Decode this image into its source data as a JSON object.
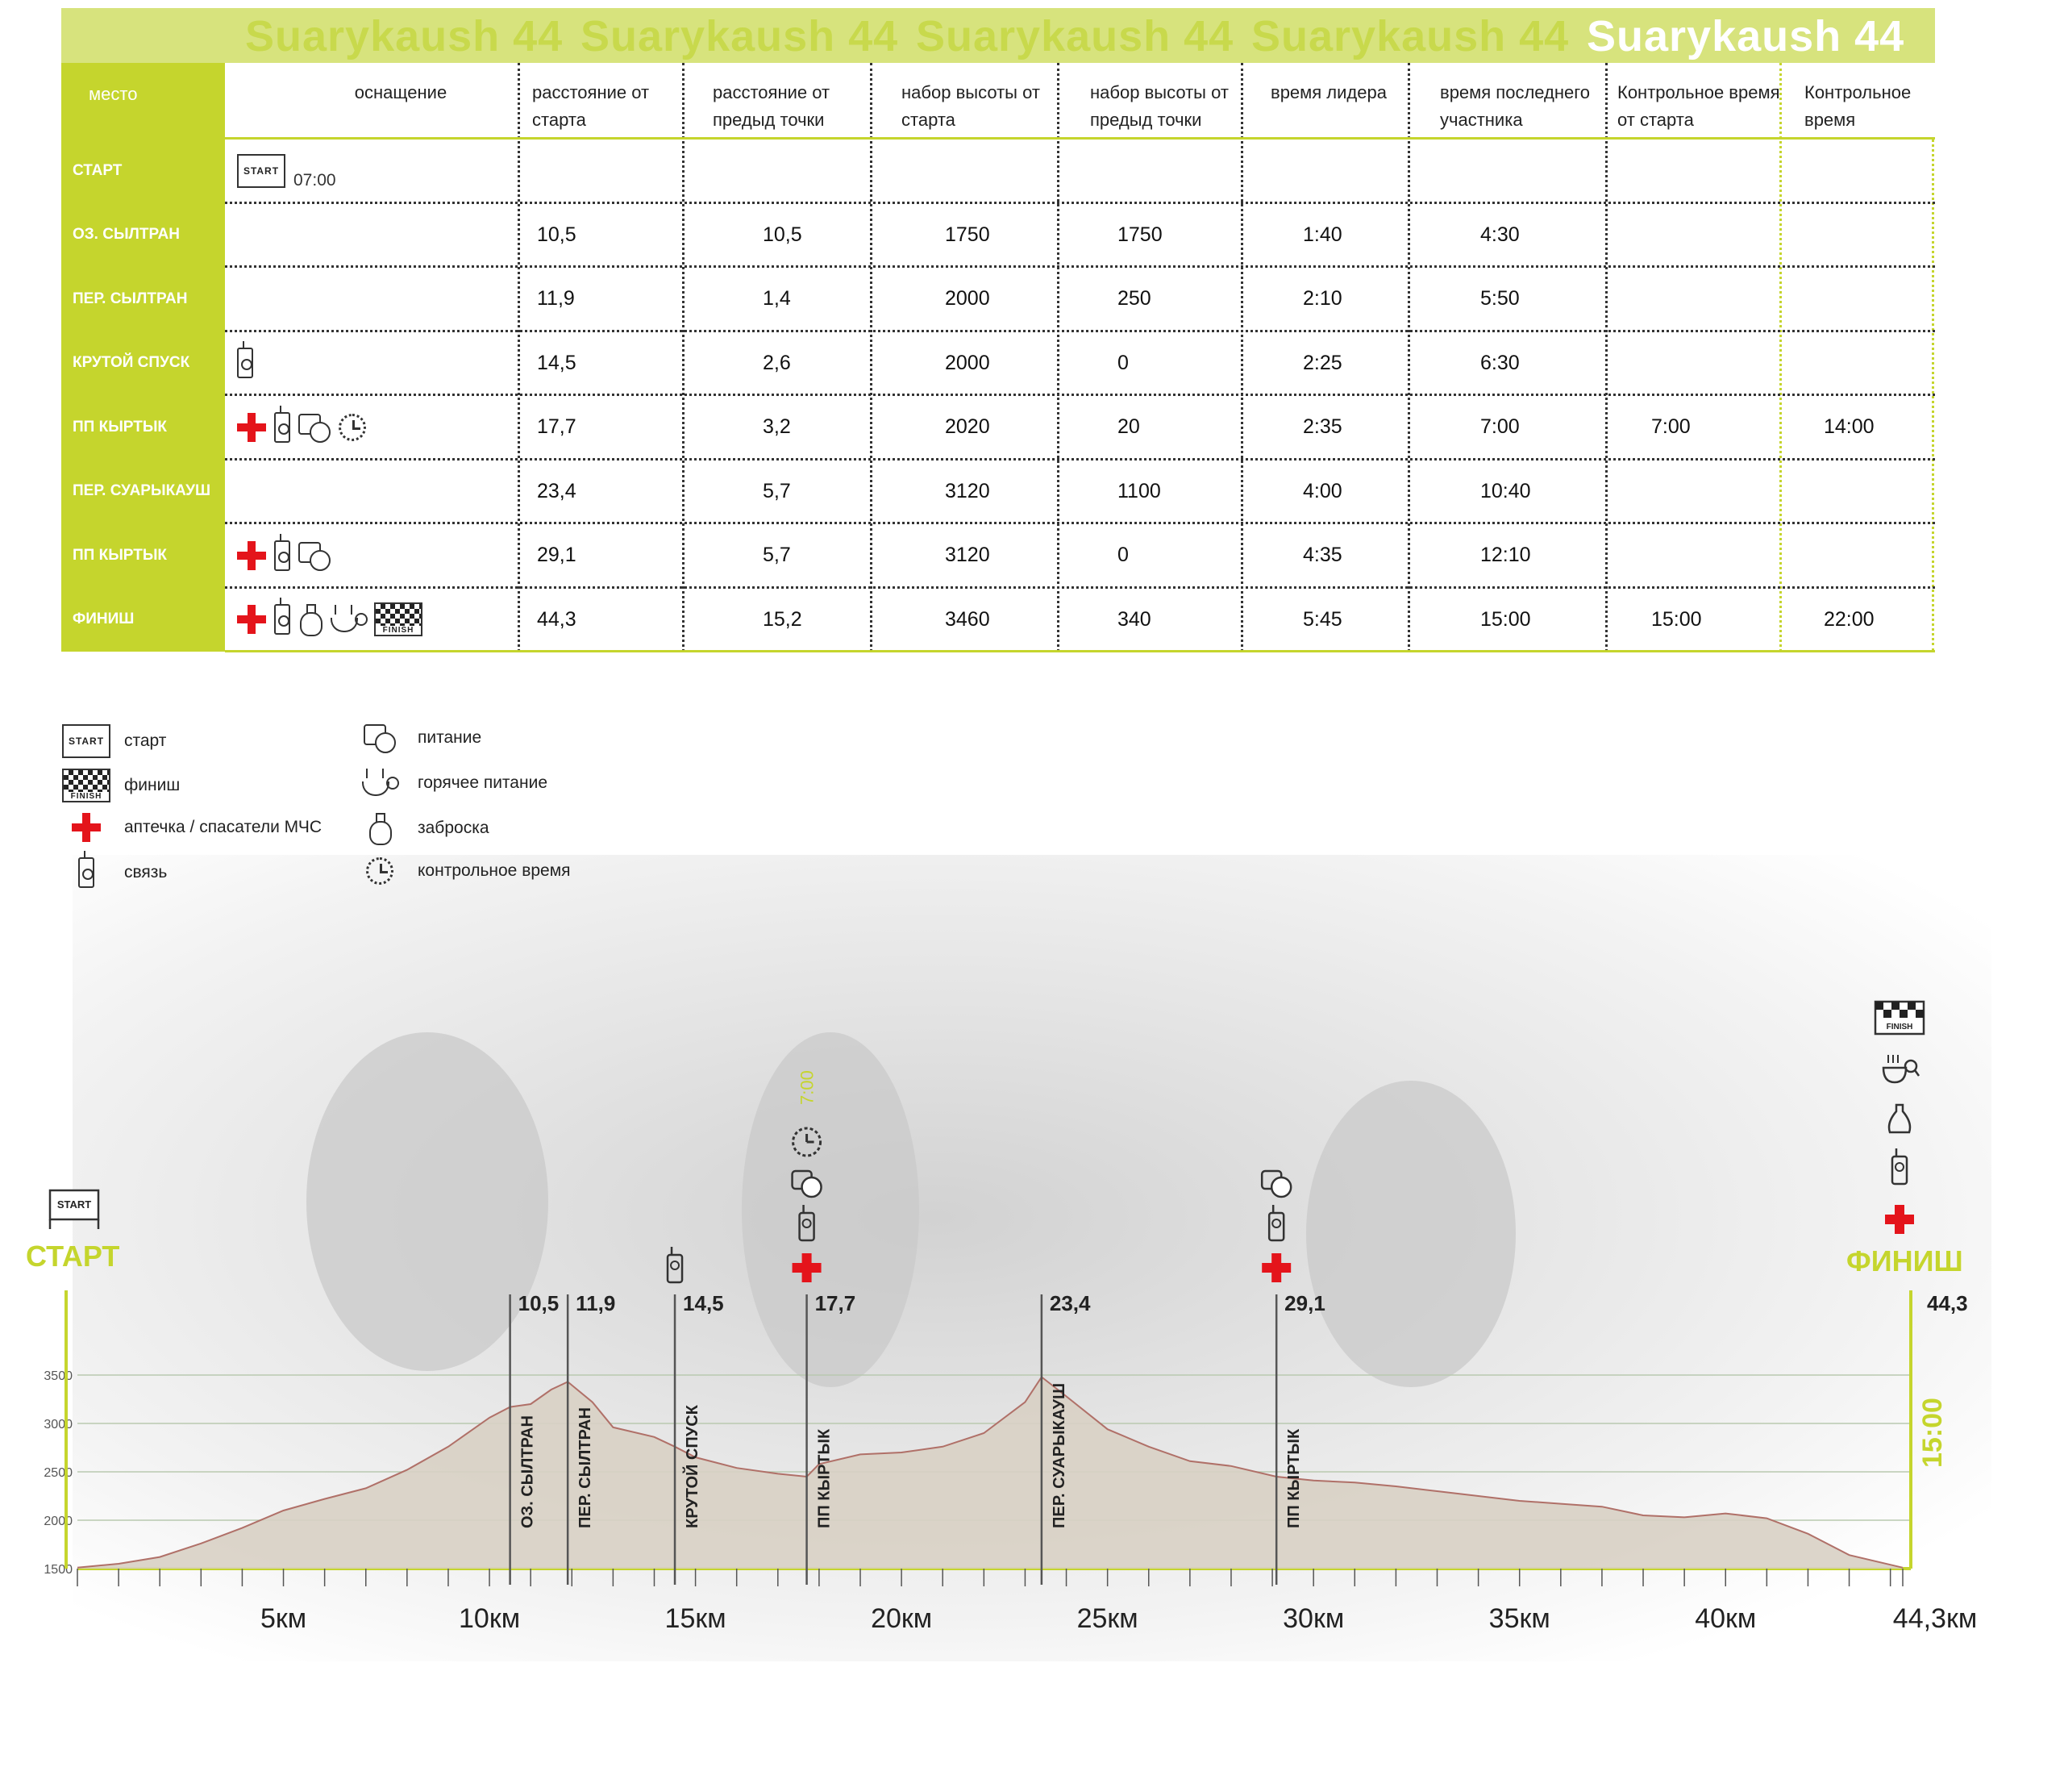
{
  "banner": {
    "titles": [
      "Suarykaush 44",
      "Suarykaush 44",
      "Suarykaush 44",
      "Suarykaush 44",
      "Suarykaush 44"
    ]
  },
  "table": {
    "headers": {
      "place": "место",
      "equipment": "оснащение",
      "dist_start": "расстояние от старта",
      "dist_prev": "расстояние от предыд точки",
      "gain_start": "набор высоты от старта",
      "gain_prev": "набор высоты от предыд точки",
      "leader_time": "время лидера",
      "last_time": "время последнего участника",
      "cutoff_start": "Контрольное время от старта",
      "cutoff": "Контрольное время"
    },
    "start_time": "07:00",
    "rows": [
      {
        "place": "СТАРТ",
        "icons": [
          "start-flag"
        ],
        "dist_start": "",
        "dist_prev": "",
        "gain_start": "",
        "gain_prev": "",
        "leader_time": "",
        "last_time": "",
        "cutoff_start": "",
        "cutoff": ""
      },
      {
        "place": "ОЗ. СЫЛТРАН",
        "icons": [],
        "dist_start": "10,5",
        "dist_prev": "10,5",
        "gain_start": "1750",
        "gain_prev": "1750",
        "leader_time": "1:40",
        "last_time": "4:30",
        "cutoff_start": "",
        "cutoff": ""
      },
      {
        "place": "ПЕР. СЫЛТРАН",
        "icons": [],
        "dist_start": "11,9",
        "dist_prev": "1,4",
        "gain_start": "2000",
        "gain_prev": "250",
        "leader_time": "2:10",
        "last_time": "5:50",
        "cutoff_start": "",
        "cutoff": ""
      },
      {
        "place": "КРУТОЙ СПУСК",
        "icons": [
          "radio"
        ],
        "dist_start": "14,5",
        "dist_prev": "2,6",
        "gain_start": "2000",
        "gain_prev": "0",
        "leader_time": "2:25",
        "last_time": "6:30",
        "cutoff_start": "",
        "cutoff": ""
      },
      {
        "place": "ПП КЫРТЫК",
        "icons": [
          "cross",
          "radio",
          "food",
          "clock"
        ],
        "dist_start": "17,7",
        "dist_prev": "3,2",
        "gain_start": "2020",
        "gain_prev": "20",
        "leader_time": "2:35",
        "last_time": "7:00",
        "cutoff_start": "7:00",
        "cutoff": "14:00"
      },
      {
        "place": "ПЕР. СУАРЫКАУШ",
        "icons": [],
        "dist_start": "23,4",
        "dist_prev": "5,7",
        "gain_start": "3120",
        "gain_prev": "1100",
        "leader_time": "4:00",
        "last_time": "10:40",
        "cutoff_start": "",
        "cutoff": ""
      },
      {
        "place": "ПП КЫРТЫК",
        "icons": [
          "cross",
          "radio",
          "food"
        ],
        "dist_start": "29,1",
        "dist_prev": "5,7",
        "gain_start": "3120",
        "gain_prev": "0",
        "leader_time": "4:35",
        "last_time": "12:10",
        "cutoff_start": "",
        "cutoff": ""
      },
      {
        "place": "ФИНИШ",
        "icons": [
          "cross",
          "radio",
          "bag",
          "hot",
          "finish-flag"
        ],
        "dist_start": "44,3",
        "dist_prev": "15,2",
        "gain_start": "3460",
        "gain_prev": "340",
        "leader_time": "5:45",
        "last_time": "15:00",
        "cutoff_start": "15:00",
        "cutoff": "22:00"
      }
    ]
  },
  "flags": {
    "start": "START",
    "finish": "FINISH"
  },
  "legend": {
    "left": [
      {
        "icon": "start-flag",
        "label": "старт"
      },
      {
        "icon": "finish-flag",
        "label": "финиш"
      },
      {
        "icon": "cross",
        "label": "аптечка / спасатели МЧС"
      },
      {
        "icon": "radio",
        "label": "связь"
      }
    ],
    "right": [
      {
        "icon": "food",
        "label": "питание"
      },
      {
        "icon": "hot",
        "label": "горячее питание"
      },
      {
        "icon": "bag",
        "label": "заброска"
      },
      {
        "icon": "clock",
        "label": "контрольное время"
      }
    ]
  },
  "colors": {
    "accent": "#c5d52d",
    "banner": "#d7e37d",
    "red": "#e4141b",
    "area": "#d8d0c4",
    "line": "#b07068"
  },
  "chart_data": {
    "type": "area",
    "start_label": "СТАРТ",
    "finish_label": "ФИНИШ",
    "finish_time": "15:00",
    "checkpoint_time": "7:00",
    "end_distance": "44,3",
    "xlim": [
      0,
      44.3
    ],
    "ylim": [
      1500,
      3500
    ],
    "yticks": [
      1500,
      2000,
      2500,
      3000,
      3500
    ],
    "xtick_labels": [
      {
        "x": 5,
        "label": "5км"
      },
      {
        "x": 10,
        "label": "10км"
      },
      {
        "x": 15,
        "label": "15км"
      },
      {
        "x": 20,
        "label": "20км"
      },
      {
        "x": 25,
        "label": "25км"
      },
      {
        "x": 30,
        "label": "30км"
      },
      {
        "x": 35,
        "label": "35км"
      },
      {
        "x": 40,
        "label": "40км"
      },
      {
        "x": 44.3,
        "label": "44,3км"
      }
    ],
    "x": [
      0,
      1,
      2,
      3,
      4,
      5,
      6,
      7,
      8,
      9,
      10,
      10.5,
      11,
      11.5,
      11.9,
      12.5,
      13,
      14,
      14.5,
      15,
      16,
      17,
      17.7,
      18,
      19,
      20,
      21,
      22,
      23,
      23.4,
      24,
      25,
      26,
      27,
      28,
      29.1,
      30,
      31,
      32,
      33,
      34,
      35,
      36,
      37,
      38,
      39,
      40,
      41,
      42,
      43,
      44.3
    ],
    "y": [
      1510,
      1550,
      1620,
      1760,
      1920,
      2100,
      2220,
      2330,
      2520,
      2760,
      3060,
      3170,
      3200,
      3350,
      3430,
      3220,
      2960,
      2860,
      2760,
      2650,
      2540,
      2480,
      2450,
      2580,
      2680,
      2700,
      2760,
      2900,
      3220,
      3480,
      3280,
      2940,
      2760,
      2610,
      2560,
      2450,
      2410,
      2390,
      2350,
      2300,
      2250,
      2200,
      2170,
      2140,
      2050,
      2030,
      2070,
      2020,
      1860,
      1640,
      1510
    ],
    "checkpoints": [
      {
        "x": 10.5,
        "label": "10,5",
        "name": "ОЗ. СЫЛТРАН",
        "icons": []
      },
      {
        "x": 11.9,
        "label": "11,9",
        "name": "ПЕР. СЫЛТРАН",
        "icons": []
      },
      {
        "x": 14.5,
        "label": "14,5",
        "name": "КРУТОЙ СПУСК",
        "icons": [
          "radio"
        ]
      },
      {
        "x": 17.7,
        "label": "17,7",
        "name": "ПП КЫРТЫК",
        "icons": [
          "cross",
          "radio",
          "food",
          "clock"
        ]
      },
      {
        "x": 23.4,
        "label": "23,4",
        "name": "ПЕР. СУАРЫКАУШ",
        "icons": []
      },
      {
        "x": 29.1,
        "label": "29,1",
        "name": "ПП КЫРТЫК",
        "icons": [
          "cross",
          "radio",
          "food"
        ]
      }
    ],
    "finish_icons": [
      "cross",
      "radio",
      "bag",
      "hot",
      "finish-flag"
    ]
  }
}
